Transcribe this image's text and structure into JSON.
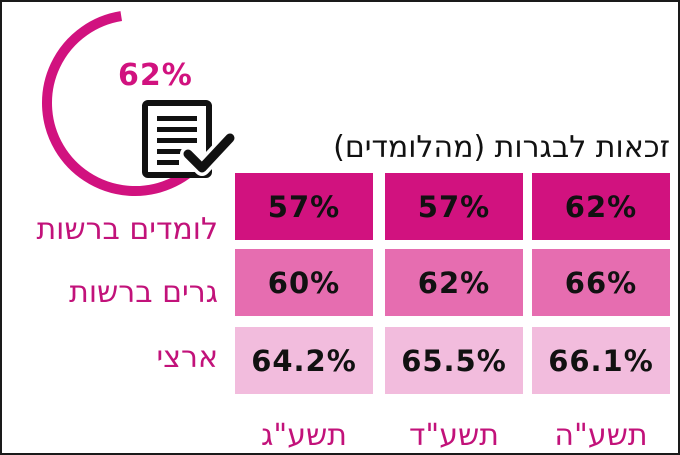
{
  "title": "זכאות לבגרות (מהלומדים)",
  "gauge": {
    "value": 62,
    "label": "62%",
    "color": "#d1127f",
    "icon": "document-check-icon"
  },
  "chart_data": {
    "type": "table",
    "title": "זכאות לבגרות (מהלומדים)",
    "columns": [
      "תשע\"ה",
      "תשע\"ד",
      "תשע\"ג"
    ],
    "rows": [
      {
        "name": "לומדים ברשות",
        "values": [
          "62%",
          "57%",
          "57%"
        ],
        "color": "#d1127f"
      },
      {
        "name": "גרים ברשות",
        "values": [
          "66%",
          "62%",
          "60%"
        ],
        "color": "#e66db0"
      },
      {
        "name": "ארצי",
        "values": [
          "66.1%",
          "65.5%",
          "64.2%"
        ],
        "color": "#f2bcdd"
      }
    ]
  }
}
